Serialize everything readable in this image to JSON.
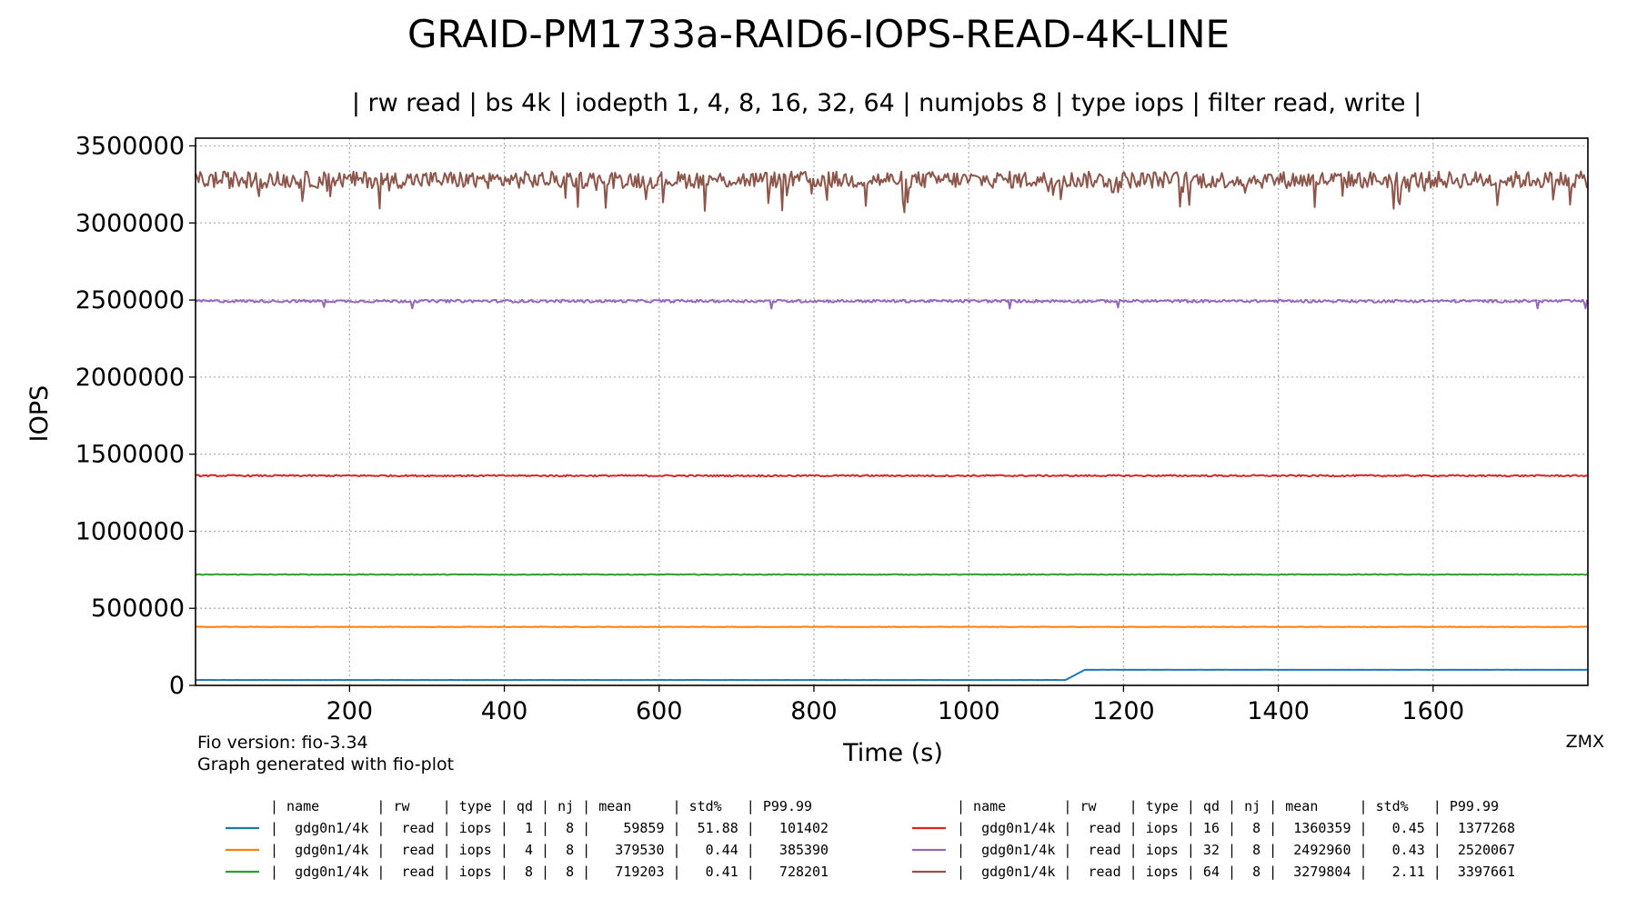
{
  "chart_data": {
    "type": "line",
    "title": "GRAID-PM1733a-RAID6-IOPS-READ-4K-LINE",
    "subtitle": "| rw read | bs 4k | iodepth 1, 4, 8, 16, 32, 64 | numjobs 8 | type iops | filter read, write |",
    "xlabel": "Time (s)",
    "ylabel": "IOPS",
    "xlim": [
      1,
      1800
    ],
    "ylim": [
      0,
      3550000
    ],
    "x_ticks": [
      200,
      400,
      600,
      800,
      1000,
      1200,
      1400,
      1600
    ],
    "y_ticks": [
      0,
      500000,
      1000000,
      1500000,
      2000000,
      2500000,
      3000000,
      3500000
    ],
    "grid": true,
    "series": [
      {
        "name": "qd 1",
        "color": "#1f77b4",
        "mean": 59859,
        "std_pct": 51.88,
        "p9999": 101402,
        "segments": [
          {
            "x_start": 1,
            "x_end": 1125,
            "value": 35000
          },
          {
            "x_start": 1150,
            "x_end": 1800,
            "value": 101000
          }
        ],
        "noise": 300
      },
      {
        "name": "qd 4",
        "color": "#ff7f0e",
        "mean": 379530,
        "std_pct": 0.44,
        "p9999": 385390,
        "noise": 1500
      },
      {
        "name": "qd 8",
        "color": "#2ca02c",
        "mean": 719203,
        "std_pct": 0.41,
        "p9999": 728201,
        "noise": 2500
      },
      {
        "name": "qd 16",
        "color": "#d62728",
        "mean": 1360359,
        "std_pct": 0.45,
        "p9999": 1377268,
        "noise": 5000
      },
      {
        "name": "qd 32",
        "color": "#9467bd",
        "mean": 2492960,
        "std_pct": 0.43,
        "p9999": 2520067,
        "noise": 9000
      },
      {
        "name": "qd 64",
        "color": "#8c564b",
        "mean": 3279804,
        "std_pct": 2.11,
        "p9999": 3397661,
        "noise": 55000
      }
    ]
  },
  "footnote": {
    "fio_version": "Fio version: fio-3.34",
    "generator": "Graph generated with fio-plot"
  },
  "watermark": "ZMX",
  "legend": {
    "header": "| name       | rw    | type | qd | nj | mean     | std%   | P99.99",
    "rows": [
      "|  gdg0n1/4k |  read | iops |  1 |  8 |    59859 |  51.88 |   101402",
      "|  gdg0n1/4k |  read | iops |  4 |  8 |   379530 |   0.44 |   385390",
      "|  gdg0n1/4k |  read | iops |  8 |  8 |   719203 |   0.41 |   728201",
      "|  gdg0n1/4k |  read | iops | 16 |  8 |  1360359 |   0.45 |  1377268",
      "|  gdg0n1/4k |  read | iops | 32 |  8 |  2492960 |   0.43 |  2520067",
      "|  gdg0n1/4k |  read | iops | 64 |  8 |  3279804 |   2.11 |  3397661"
    ]
  }
}
